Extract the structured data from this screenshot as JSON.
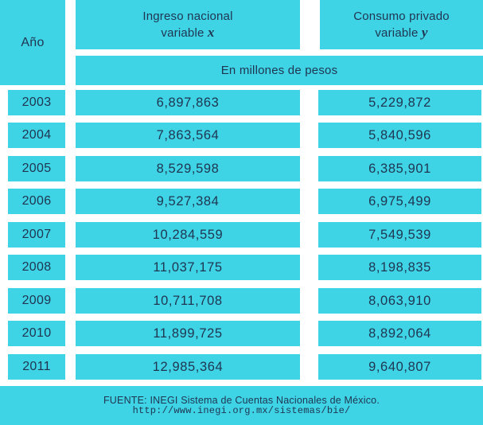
{
  "header": {
    "year_label": "Año",
    "col1_line1": "Ingreso nacional",
    "col1_line2_prefix": "variable",
    "col1_var": "x",
    "col2_line1": "Consumo privado",
    "col2_line2_prefix": "variable",
    "col2_var": "y",
    "units": "En millones de pesos"
  },
  "rows": [
    {
      "year": "2003",
      "ingreso": "6,897,863",
      "consumo": "5,229,872"
    },
    {
      "year": "2004",
      "ingreso": "7,863,564",
      "consumo": "5,840,596"
    },
    {
      "year": "2005",
      "ingreso": "8,529,598",
      "consumo": "6,385,901"
    },
    {
      "year": "2006",
      "ingreso": "9,527,384",
      "consumo": "6,975,499"
    },
    {
      "year": "2007",
      "ingreso": "10,284,559",
      "consumo": "7,549,539"
    },
    {
      "year": "2008",
      "ingreso": "11,037,175",
      "consumo": "8,198,835"
    },
    {
      "year": "2009",
      "ingreso": "10,711,708",
      "consumo": "8,063,910"
    },
    {
      "year": "2010",
      "ingreso": "11,899,725",
      "consumo": "8,892,064"
    },
    {
      "year": "2011",
      "ingreso": "12,985,364",
      "consumo": "9,640,807"
    }
  ],
  "footer": {
    "source": "FUENTE: INEGI Sistema de Cuentas Nacionales de México.",
    "url": "http://www.inegi.org.mx/sistemas/bie/"
  },
  "colors": {
    "cell": "#3fd3e6",
    "text": "#1f3550",
    "background": "#ffffff"
  }
}
